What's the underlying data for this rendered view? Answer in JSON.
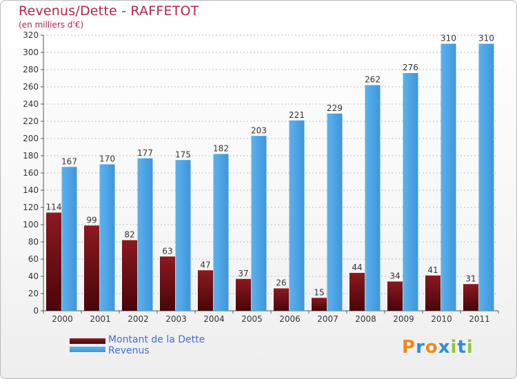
{
  "page": {
    "title": "Revenus/Dette - RAFFETOT",
    "subtitle": "(en milliers d'€)"
  },
  "logo": {
    "text": "Proxiti",
    "letters": [
      "P",
      "r",
      "o",
      "x",
      "i",
      "t",
      "i"
    ],
    "colors": [
      "#f08a1c",
      "#2a8fd8",
      "#f08a1c",
      "#2a8fd8",
      "#8cc63f",
      "#2a8fd8",
      "#8cc63f"
    ]
  },
  "chart_data": {
    "type": "bar",
    "title": "Revenus/Dette - RAFFETOT",
    "subtitle": "(en milliers d'€)",
    "xlabel": "",
    "ylabel": "",
    "categories": [
      "2000",
      "2001",
      "2002",
      "2003",
      "2004",
      "2005",
      "2006",
      "2007",
      "2008",
      "2009",
      "2010",
      "2011"
    ],
    "series": [
      {
        "name": "Montant de la Dette",
        "color": "#6b0f14",
        "values": [
          114,
          99,
          82,
          63,
          47,
          37,
          26,
          15,
          44,
          34,
          41,
          31
        ]
      },
      {
        "name": "Revenus",
        "color": "#4ea6e8",
        "values": [
          167,
          170,
          177,
          175,
          182,
          203,
          221,
          229,
          262,
          276,
          310,
          310
        ]
      }
    ],
    "ylim": [
      0,
      320
    ],
    "yticks": [
      0,
      20,
      40,
      60,
      80,
      100,
      120,
      140,
      160,
      180,
      200,
      220,
      240,
      260,
      280,
      300,
      320
    ],
    "grid": true,
    "legend_position": "bottom-left",
    "data_labels": true
  }
}
